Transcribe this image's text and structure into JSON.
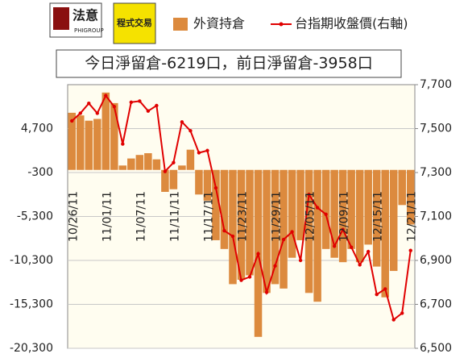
{
  "chart_data": {
    "type": "bar",
    "title": "今日淨留倉-6219口，前日淨留倉-3958口",
    "logo_texts": [
      "法意",
      "PHIGROUP",
      "程式交易"
    ],
    "categories": [
      "10/26/11",
      null,
      null,
      null,
      "11/01/11",
      null,
      null,
      null,
      "11/07/11",
      null,
      null,
      null,
      "11/11/11",
      null,
      null,
      null,
      "11/17/11",
      null,
      null,
      null,
      "11/23/11",
      null,
      null,
      null,
      "11/29/11",
      null,
      null,
      null,
      "12/05/11",
      null,
      null,
      null,
      "12/09/11",
      null,
      null,
      null,
      "12/15/11",
      null,
      null,
      null,
      "12/21/11"
    ],
    "series": [
      {
        "name": "外資持倉",
        "type": "bar",
        "axis": "y",
        "color": "#dc8a3e",
        "values": [
          6500,
          6200,
          5600,
          5800,
          8800,
          7600,
          500,
          1300,
          1700,
          1900,
          1200,
          -2500,
          -2200,
          500,
          2300,
          -2800,
          -3500,
          -8000,
          -9000,
          -13000,
          -12500,
          -12000,
          -19000,
          -14000,
          -13000,
          -13500,
          -10000,
          -8000,
          -14000,
          -15000,
          -9000,
          -10000,
          -10500,
          -9000,
          -10500,
          -8500,
          -11000,
          -14500,
          -11500,
          -4000,
          -6219
        ]
      },
      {
        "name": "台指期收盤價(右軸)",
        "type": "line",
        "axis": "y2",
        "color": "#e00000",
        "values": [
          7535,
          7570,
          7615,
          7570,
          7650,
          7600,
          7430,
          7620,
          7625,
          7580,
          7605,
          7305,
          7345,
          7530,
          7490,
          7390,
          7400,
          7230,
          7035,
          7010,
          6810,
          6825,
          6930,
          6755,
          6875,
          6995,
          7030,
          6900,
          7200,
          7140,
          7110,
          6965,
          7040,
          6960,
          6880,
          6940,
          6745,
          6770,
          6630,
          6660,
          6945
        ]
      }
    ],
    "ylim": [
      -20300,
      9700
    ],
    "yticks": [
      {
        "value": -20300,
        "label": "-20,300"
      },
      {
        "value": -15300,
        "label": "-15,300"
      },
      {
        "value": -10300,
        "label": "-10,300"
      },
      {
        "value": -5300,
        "label": "-5,300"
      },
      -300,
      {
        "value": 4700,
        "label": "4,700"
      }
    ],
    "y2lim": [
      6500,
      7700
    ],
    "y2ticks": [
      {
        "value": 6500,
        "label": "6,500"
      },
      {
        "value": 6700,
        "label": "6,700"
      },
      {
        "value": 6900,
        "label": "6,900"
      },
      {
        "value": 7100,
        "label": "7,100"
      },
      {
        "value": 7300,
        "label": "7,300"
      },
      {
        "value": 7500,
        "label": "7,500"
      },
      {
        "value": 7700,
        "label": "7,700"
      }
    ],
    "grid": true
  }
}
